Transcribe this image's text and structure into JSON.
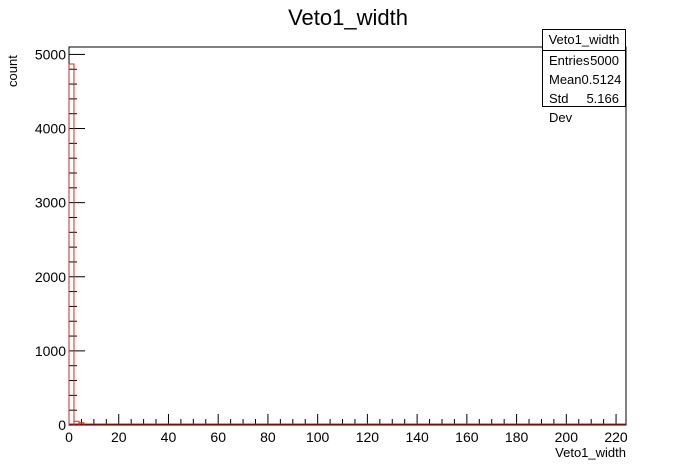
{
  "chart_data": {
    "type": "bar",
    "title": "Veto1_width",
    "xlabel": "Veto1_width",
    "ylabel": "count",
    "xlim": [
      0,
      224
    ],
    "ylim": [
      0,
      5100
    ],
    "x_ticks": [
      0,
      20,
      40,
      60,
      80,
      100,
      120,
      140,
      160,
      180,
      200,
      220
    ],
    "y_ticks": [
      0,
      1000,
      2000,
      3000,
      4000,
      5000
    ],
    "bins": [
      {
        "x0": 0,
        "x1": 2,
        "value": 4870
      },
      {
        "x0": 2,
        "x1": 4,
        "value": 50
      },
      {
        "x0": 4,
        "x1": 6,
        "value": 30
      }
    ],
    "colors": {
      "line": "#d42a1e",
      "axis": "#000000"
    }
  },
  "stats": {
    "title": "Veto1_width",
    "rows": [
      {
        "label": "Entries",
        "value": "5000"
      },
      {
        "label": "Mean",
        "value": "0.5124"
      },
      {
        "label": "Std Dev",
        "value": "5.166"
      }
    ]
  }
}
